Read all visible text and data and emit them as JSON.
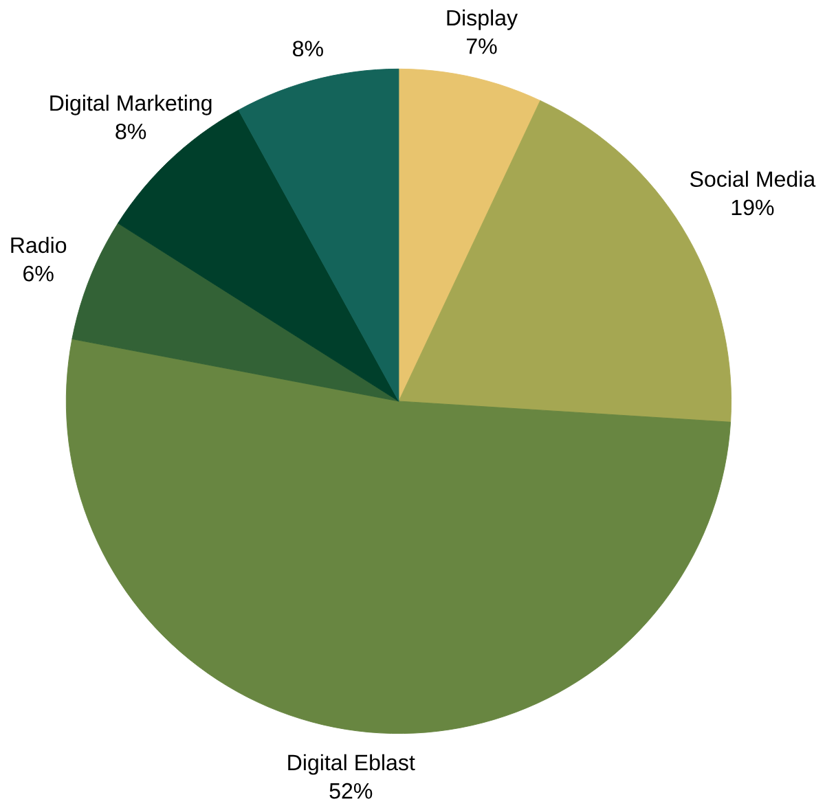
{
  "chart_data": {
    "type": "pie",
    "categories": [
      "Display",
      "Social Media",
      "Digital Eblast",
      "Radio",
      "Digital Marketing",
      null
    ],
    "values": [
      7,
      19,
      52,
      6,
      8,
      8
    ],
    "value_labels": [
      "7%",
      "19%",
      "52%",
      "6%",
      "8%",
      "8%"
    ],
    "colors": [
      "#e8c46e",
      "#a5a752",
      "#688641",
      "#336236",
      "#003f2b",
      "#14645a"
    ]
  }
}
